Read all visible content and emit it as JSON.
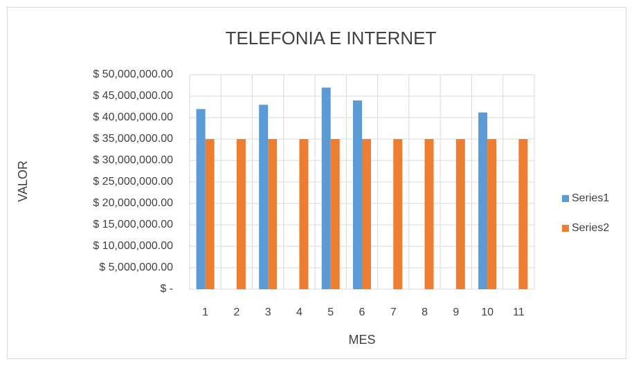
{
  "chart_data": {
    "type": "bar",
    "title": "TELEFONIA E INTERNET",
    "x_label": "MES",
    "y_label": "VALOR",
    "categories": [
      1,
      2,
      3,
      4,
      5,
      6,
      7,
      8,
      9,
      10,
      11
    ],
    "series": [
      {
        "name": "Series1",
        "color": "#5b9bd5",
        "values": [
          42000000,
          null,
          43000000,
          null,
          47000000,
          44000000,
          null,
          null,
          null,
          41200000,
          null
        ]
      },
      {
        "name": "Series2",
        "color": "#ed7d31",
        "values": [
          35000000,
          35000000,
          35000000,
          35000000,
          35000000,
          35000000,
          35000000,
          35000000,
          35000000,
          35000000,
          35000000
        ]
      }
    ],
    "ylim": [
      0,
      50000000
    ],
    "yticks": [
      {
        "value": 0,
        "label": "$ -"
      },
      {
        "value": 5000000,
        "label": "$ 5,000,000.00"
      },
      {
        "value": 10000000,
        "label": "$ 10,000,000.00"
      },
      {
        "value": 15000000,
        "label": "$ 15,000,000.00"
      },
      {
        "value": 20000000,
        "label": "$ 20,000,000.00"
      },
      {
        "value": 25000000,
        "label": "$ 25,000,000.00"
      },
      {
        "value": 30000000,
        "label": "$ 30,000,000.00"
      },
      {
        "value": 35000000,
        "label": "$ 35,000,000.00"
      },
      {
        "value": 40000000,
        "label": "$ 40,000,000.00"
      },
      {
        "value": 45000000,
        "label": "$ 45,000,000.00"
      },
      {
        "value": 50000000,
        "label": "$ 50,000,000.00"
      }
    ],
    "grid": true,
    "legend": "right"
  }
}
